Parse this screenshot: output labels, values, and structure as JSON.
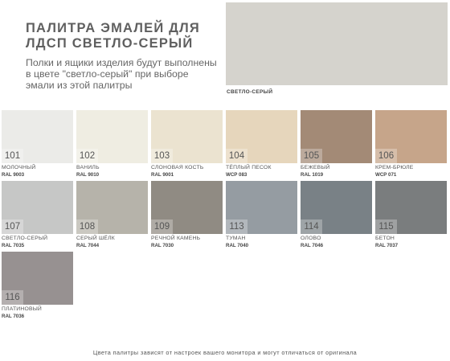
{
  "title": "ПАЛИТРА ЭМАЛЕЙ ДЛЯ ЛДСП СВЕТЛО-СЕРЫЙ",
  "subtitle": "Полки и ящики изделия будут выполнены в цвете \"светло-серый\" при выборе эмали из этой палитры",
  "preview": {
    "label": "СВЕТЛО-СЕРЫЙ",
    "color": "#d5d3cd"
  },
  "swatches": [
    {
      "code": "101",
      "name": "МОЛОЧНЫЙ",
      "ral": "RAL 9003",
      "color": "#ebebe8"
    },
    {
      "code": "102",
      "name": "ВАНИЛЬ",
      "ral": "RAL 9010",
      "color": "#efede2"
    },
    {
      "code": "103",
      "name": "СЛОНОВАЯ КОСТЬ",
      "ral": "RAL 9001",
      "color": "#ebe3d0"
    },
    {
      "code": "104",
      "name": "ТЁПЛЫЙ ПЕСОК",
      "ral": "WCP 083",
      "color": "#e6d6bc"
    },
    {
      "code": "105",
      "name": "БЕЖЕВЫЙ",
      "ral": "RAL 1019",
      "color": "#a38a76"
    },
    {
      "code": "106",
      "name": "КРЕМ-БРЮЛЕ",
      "ral": "WCP 071",
      "color": "#c6a58a"
    },
    {
      "code": "107",
      "name": "СВЕТЛО-СЕРЫЙ",
      "ral": "RAL 7035",
      "color": "#c6c7c6"
    },
    {
      "code": "108",
      "name": "СЕРЫЙ ШЁЛК",
      "ral": "RAL 7044",
      "color": "#b6b3aa"
    },
    {
      "code": "109",
      "name": "РЕЧНОЙ КАМЕНЬ",
      "ral": "RAL 7030",
      "color": "#908b83"
    },
    {
      "code": "113",
      "name": "ТУМАН",
      "ral": "RAL 7040",
      "color": "#959ca2"
    },
    {
      "code": "114",
      "name": "ОЛОВО",
      "ral": "RAL 7046",
      "color": "#798186"
    },
    {
      "code": "115",
      "name": "БЕТОН",
      "ral": "RAL 7037",
      "color": "#7a7d7e"
    },
    {
      "code": "116",
      "name": "ПЛАТИНОВЫЙ",
      "ral": "RAL 7036",
      "color": "#979191"
    }
  ],
  "footnote": "Цвета палитры зависят от настроек вашего монитора и могут отличаться от оригинала"
}
